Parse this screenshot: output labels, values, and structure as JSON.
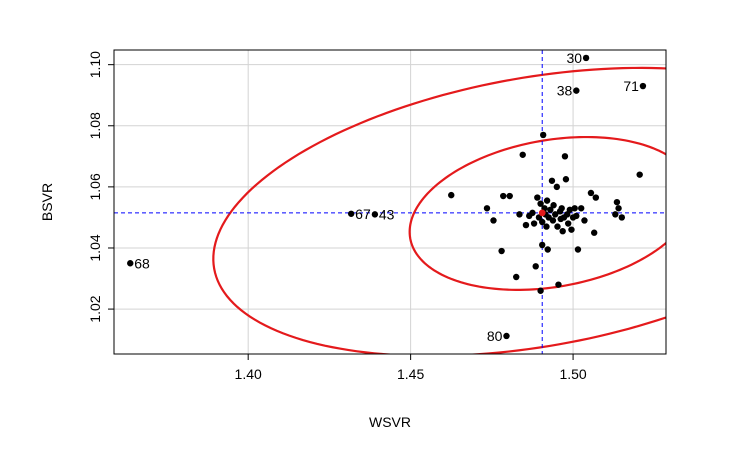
{
  "chart_data": {
    "type": "scatter",
    "title": "",
    "xlabel": "WSVR",
    "ylabel": "BSVR",
    "xlim": [
      1.3587,
      1.5286
    ],
    "ylim": [
      1.0053,
      1.1048
    ],
    "x_ticks": [
      1.4,
      1.45,
      1.5
    ],
    "x_tick_labels": [
      "1.40",
      "1.45",
      "1.50"
    ],
    "y_ticks": [
      1.02,
      1.04,
      1.06,
      1.08,
      1.1
    ],
    "y_tick_labels": [
      "1.02",
      "1.04",
      "1.06",
      "1.08",
      "1.10"
    ],
    "grid": true,
    "center": {
      "x": 1.4905,
      "y": 1.0515
    },
    "colors": {
      "points": "#000000",
      "ellipse": "#e41a1c",
      "crosshair": "#0000ff",
      "center": "#e41a1c",
      "grid": "#d3d3d3"
    },
    "ellipses": [
      {
        "cx": 1.4935,
        "cy": 1.0513,
        "rx": 0.0443,
        "ry": 0.024,
        "angle_deg": 10
      },
      {
        "cx": 1.4885,
        "cy": 1.0518,
        "rx": 0.1005,
        "ry": 0.044,
        "angle_deg": 10
      }
    ],
    "labeled_points": [
      {
        "x": 1.3637,
        "y": 1.035,
        "label": "68",
        "side": "right"
      },
      {
        "x": 1.4317,
        "y": 1.0512,
        "label": "67",
        "side": "right"
      },
      {
        "x": 1.439,
        "y": 1.051,
        "label": "43",
        "side": "right"
      },
      {
        "x": 1.504,
        "y": 1.1022,
        "label": "30",
        "side": "left"
      },
      {
        "x": 1.501,
        "y": 1.0915,
        "label": "38",
        "side": "left"
      },
      {
        "x": 1.5215,
        "y": 1.093,
        "label": "71",
        "side": "left"
      },
      {
        "x": 1.4795,
        "y": 1.0112,
        "label": "80",
        "side": "left"
      }
    ],
    "points": [
      {
        "x": 1.4625,
        "y": 1.0573
      },
      {
        "x": 1.4735,
        "y": 1.053
      },
      {
        "x": 1.4755,
        "y": 1.049
      },
      {
        "x": 1.478,
        "y": 1.039
      },
      {
        "x": 1.4785,
        "y": 1.057
      },
      {
        "x": 1.4805,
        "y": 1.057
      },
      {
        "x": 1.4825,
        "y": 1.0305
      },
      {
        "x": 1.4835,
        "y": 1.051
      },
      {
        "x": 1.4845,
        "y": 1.0705
      },
      {
        "x": 1.4855,
        "y": 1.0475
      },
      {
        "x": 1.4865,
        "y": 1.0505
      },
      {
        "x": 1.4875,
        "y": 1.0515
      },
      {
        "x": 1.488,
        "y": 1.048
      },
      {
        "x": 1.4885,
        "y": 1.034
      },
      {
        "x": 1.489,
        "y": 1.0565
      },
      {
        "x": 1.4895,
        "y": 1.05
      },
      {
        "x": 1.49,
        "y": 1.026
      },
      {
        "x": 1.49,
        "y": 1.0545
      },
      {
        "x": 1.4905,
        "y": 1.0485
      },
      {
        "x": 1.4905,
        "y": 1.041
      },
      {
        "x": 1.4908,
        "y": 1.077
      },
      {
        "x": 1.4912,
        "y": 1.053
      },
      {
        "x": 1.4915,
        "y": 1.051
      },
      {
        "x": 1.4918,
        "y": 1.047
      },
      {
        "x": 1.492,
        "y": 1.0555
      },
      {
        "x": 1.4922,
        "y": 1.0395
      },
      {
        "x": 1.4925,
        "y": 1.05
      },
      {
        "x": 1.493,
        "y": 1.0525
      },
      {
        "x": 1.4935,
        "y": 1.062
      },
      {
        "x": 1.4938,
        "y": 1.049
      },
      {
        "x": 1.494,
        "y": 1.054
      },
      {
        "x": 1.4945,
        "y": 1.051
      },
      {
        "x": 1.495,
        "y": 1.06
      },
      {
        "x": 1.4952,
        "y": 1.047
      },
      {
        "x": 1.4955,
        "y": 1.028
      },
      {
        "x": 1.496,
        "y": 1.052
      },
      {
        "x": 1.4962,
        "y": 1.0495
      },
      {
        "x": 1.4965,
        "y": 1.053
      },
      {
        "x": 1.4968,
        "y": 1.0455
      },
      {
        "x": 1.4972,
        "y": 1.05
      },
      {
        "x": 1.4975,
        "y": 1.07
      },
      {
        "x": 1.4978,
        "y": 1.0625
      },
      {
        "x": 1.4982,
        "y": 1.051
      },
      {
        "x": 1.4985,
        "y": 1.048
      },
      {
        "x": 1.499,
        "y": 1.0525
      },
      {
        "x": 1.4995,
        "y": 1.046
      },
      {
        "x": 1.5,
        "y": 1.05
      },
      {
        "x": 1.5005,
        "y": 1.053
      },
      {
        "x": 1.501,
        "y": 1.0505
      },
      {
        "x": 1.5015,
        "y": 1.0395
      },
      {
        "x": 1.5025,
        "y": 1.053
      },
      {
        "x": 1.5035,
        "y": 1.049
      },
      {
        "x": 1.5055,
        "y": 1.058
      },
      {
        "x": 1.5065,
        "y": 1.045
      },
      {
        "x": 1.507,
        "y": 1.0565
      },
      {
        "x": 1.513,
        "y": 1.051
      },
      {
        "x": 1.5135,
        "y": 1.055
      },
      {
        "x": 1.514,
        "y": 1.053
      },
      {
        "x": 1.515,
        "y": 1.05
      },
      {
        "x": 1.5205,
        "y": 1.064
      }
    ]
  }
}
